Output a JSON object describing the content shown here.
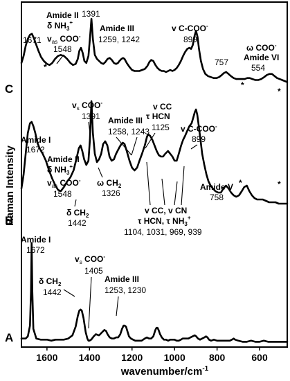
{
  "chart_data": {
    "type": "line",
    "xlabel": "wavenumber/cm",
    "xlabel_sup": "-1",
    "ylabel": "Raman Intensity",
    "x_reversed": true,
    "xlim": [
      1720,
      470
    ],
    "x_ticks": [
      1600,
      1400,
      1200,
      1000,
      800,
      600
    ],
    "x_tick_labels": [
      "1600",
      "1400",
      "1200",
      "1000",
      "800",
      "600"
    ],
    "grid": false,
    "legend": "none",
    "series": [
      {
        "label": "A",
        "x": [
          1720,
          1700,
          1690,
          1680,
          1675,
          1672,
          1669,
          1664,
          1650,
          1630,
          1600,
          1580,
          1560,
          1540,
          1520,
          1500,
          1480,
          1465,
          1455,
          1448,
          1442,
          1436,
          1428,
          1418,
          1410,
          1405,
          1400,
          1392,
          1380,
          1370,
          1355,
          1340,
          1330,
          1322,
          1315,
          1305,
          1295,
          1285,
          1275,
          1265,
          1255,
          1247,
          1240,
          1234,
          1228,
          1222,
          1214,
          1205,
          1195,
          1185,
          1170,
          1155,
          1140,
          1130,
          1120,
          1110,
          1100,
          1090,
          1085,
          1080,
          1075,
          1068,
          1060,
          1050,
          1040,
          1030,
          1020,
          1010,
          1000,
          990,
          980,
          970,
          962,
          955,
          945,
          935,
          925,
          915,
          905,
          898,
          890,
          880,
          870,
          860,
          852,
          845,
          838,
          828,
          815,
          800,
          785,
          770,
          755,
          740,
          730,
          722,
          715,
          700,
          680,
          660,
          640,
          620,
          600,
          580,
          560,
          540,
          520,
          500,
          480,
          470
        ],
        "y": [
          0.06,
          0.06,
          0.08,
          0.18,
          0.5,
          0.95,
          0.5,
          0.15,
          0.06,
          0.05,
          0.05,
          0.04,
          0.05,
          0.05,
          0.05,
          0.06,
          0.09,
          0.17,
          0.27,
          0.32,
          0.33,
          0.32,
          0.25,
          0.12,
          0.06,
          0.04,
          0.04,
          0.05,
          0.08,
          0.1,
          0.09,
          0.12,
          0.14,
          0.13,
          0.1,
          0.07,
          0.06,
          0.06,
          0.07,
          0.07,
          0.1,
          0.15,
          0.18,
          0.18,
          0.17,
          0.13,
          0.08,
          0.06,
          0.05,
          0.04,
          0.04,
          0.04,
          0.06,
          0.07,
          0.06,
          0.06,
          0.08,
          0.14,
          0.16,
          0.16,
          0.14,
          0.1,
          0.07,
          0.05,
          0.05,
          0.04,
          0.05,
          0.05,
          0.05,
          0.04,
          0.04,
          0.05,
          0.06,
          0.06,
          0.06,
          0.06,
          0.07,
          0.08,
          0.09,
          0.08,
          0.06,
          0.05,
          0.06,
          0.07,
          0.08,
          0.07,
          0.05,
          0.04,
          0.05,
          0.04,
          0.04,
          0.04,
          0.04,
          0.04,
          0.05,
          0.06,
          0.05,
          0.04,
          0.03,
          0.03,
          0.04,
          0.03,
          0.03,
          0.04,
          0.03,
          0.03,
          0.03,
          0.03,
          0.03,
          0.03
        ]
      },
      {
        "label": "B",
        "x": [
          1720,
          1710,
          1700,
          1690,
          1680,
          1672,
          1664,
          1655,
          1645,
          1635,
          1620,
          1605,
          1590,
          1575,
          1560,
          1548,
          1535,
          1520,
          1505,
          1490,
          1475,
          1462,
          1450,
          1442,
          1434,
          1425,
          1415,
          1405,
          1398,
          1391,
          1384,
          1375,
          1365,
          1355,
          1345,
          1336,
          1326,
          1316,
          1306,
          1296,
          1285,
          1275,
          1265,
          1258,
          1250,
          1243,
          1235,
          1225,
          1212,
          1200,
          1188,
          1176,
          1165,
          1153,
          1140,
          1130,
          1125,
          1115,
          1104,
          1094,
          1084,
          1074,
          1064,
          1054,
          1044,
          1031,
          1020,
          1010,
          1000,
          990,
          980,
          969,
          960,
          950,
          939,
          930,
          920,
          912,
          905,
          899,
          893,
          886,
          878,
          870,
          860,
          850,
          840,
          830,
          820,
          808,
          795,
          782,
          770,
          758,
          746,
          734,
          722,
          710,
          697,
          684,
          672,
          660,
          648,
          636,
          624,
          612,
          600,
          585,
          570,
          555,
          540,
          525,
          510,
          495,
          480,
          470
        ],
        "y": [
          0.35,
          0.45,
          0.6,
          0.75,
          0.82,
          0.83,
          0.8,
          0.75,
          0.68,
          0.64,
          0.6,
          0.55,
          0.48,
          0.42,
          0.37,
          0.34,
          0.33,
          0.36,
          0.4,
          0.43,
          0.48,
          0.56,
          0.64,
          0.66,
          0.62,
          0.56,
          0.52,
          0.55,
          0.7,
          0.98,
          0.75,
          0.6,
          0.54,
          0.56,
          0.6,
          0.67,
          0.69,
          0.66,
          0.58,
          0.55,
          0.56,
          0.6,
          0.63,
          0.65,
          0.67,
          0.68,
          0.67,
          0.62,
          0.55,
          0.5,
          0.48,
          0.5,
          0.55,
          0.6,
          0.66,
          0.72,
          0.74,
          0.73,
          0.7,
          0.66,
          0.62,
          0.59,
          0.58,
          0.58,
          0.6,
          0.62,
          0.6,
          0.58,
          0.55,
          0.55,
          0.6,
          0.66,
          0.7,
          0.73,
          0.77,
          0.8,
          0.82,
          0.86,
          0.9,
          0.92,
          0.88,
          0.8,
          0.7,
          0.6,
          0.52,
          0.45,
          0.4,
          0.37,
          0.35,
          0.33,
          0.32,
          0.32,
          0.35,
          0.37,
          0.35,
          0.32,
          0.3,
          0.29,
          0.3,
          0.33,
          0.36,
          0.37,
          0.33,
          0.3,
          0.28,
          0.27,
          0.27,
          0.27,
          0.26,
          0.25,
          0.25,
          0.25,
          0.24,
          0.24,
          0.24,
          0.24
        ]
      },
      {
        "label": "C",
        "x": [
          1720,
          1710,
          1700,
          1690,
          1680,
          1671,
          1662,
          1652,
          1640,
          1628,
          1615,
          1600,
          1588,
          1575,
          1562,
          1548,
          1535,
          1520,
          1505,
          1490,
          1478,
          1465,
          1455,
          1448,
          1440,
          1432,
          1424,
          1415,
          1405,
          1398,
          1391,
          1384,
          1375,
          1365,
          1355,
          1345,
          1335,
          1325,
          1315,
          1305,
          1295,
          1285,
          1275,
          1266,
          1259,
          1250,
          1242,
          1235,
          1225,
          1212,
          1200,
          1188,
          1176,
          1165,
          1153,
          1140,
          1128,
          1118,
          1110,
          1100,
          1090,
          1080,
          1070,
          1060,
          1050,
          1040,
          1030,
          1020,
          1010,
          1000,
          990,
          980,
          970,
          960,
          950,
          940,
          930,
          922,
          914,
          906,
          899,
          892,
          885,
          876,
          866,
          855,
          843,
          830,
          816,
          802,
          790,
          778,
          768,
          757,
          746,
          735,
          722,
          709,
          696,
          683,
          670,
          658,
          646,
          634,
          620,
          606,
          592,
          578,
          566,
          554,
          542,
          530,
          518,
          506,
          494,
          482,
          470
        ],
        "y": [
          0.38,
          0.45,
          0.55,
          0.62,
          0.66,
          0.67,
          0.63,
          0.57,
          0.5,
          0.44,
          0.4,
          0.37,
          0.36,
          0.38,
          0.42,
          0.45,
          0.46,
          0.45,
          0.42,
          0.38,
          0.36,
          0.37,
          0.42,
          0.5,
          0.53,
          0.48,
          0.4,
          0.38,
          0.45,
          0.62,
          0.82,
          0.62,
          0.46,
          0.42,
          0.4,
          0.38,
          0.37,
          0.39,
          0.42,
          0.43,
          0.41,
          0.38,
          0.37,
          0.38,
          0.4,
          0.42,
          0.43,
          0.42,
          0.38,
          0.34,
          0.31,
          0.3,
          0.3,
          0.3,
          0.31,
          0.32,
          0.35,
          0.39,
          0.41,
          0.4,
          0.36,
          0.33,
          0.31,
          0.3,
          0.3,
          0.29,
          0.3,
          0.31,
          0.3,
          0.31,
          0.33,
          0.36,
          0.4,
          0.45,
          0.49,
          0.52,
          0.53,
          0.52,
          0.56,
          0.65,
          0.7,
          0.64,
          0.52,
          0.4,
          0.32,
          0.27,
          0.25,
          0.24,
          0.23,
          0.23,
          0.24,
          0.26,
          0.28,
          0.29,
          0.27,
          0.25,
          0.23,
          0.22,
          0.22,
          0.22,
          0.22,
          0.23,
          0.23,
          0.22,
          0.21,
          0.21,
          0.22,
          0.24,
          0.26,
          0.27,
          0.27,
          0.25,
          0.23,
          0.22,
          0.21,
          0.2,
          0.19
        ]
      }
    ],
    "panel_labels": [
      "C",
      "B",
      "A"
    ],
    "annotations": {
      "C": [
        {
          "lines": [
            "1671"
          ],
          "bold": [
            false
          ]
        },
        {
          "lines": [
            "Amide II",
            "δ NH₃⁺"
          ],
          "bold": [
            true,
            true
          ]
        },
        {
          "lines": [
            "1391"
          ],
          "bold": [
            false
          ]
        },
        {
          "lines": [
            "v",
            "as",
            " COO⁻"
          ],
          "bold": [
            true,
            false,
            true
          ]
        },
        {
          "lines": [
            "1548"
          ],
          "bold": [
            false
          ]
        },
        {
          "lines": [
            "*"
          ],
          "bold": [
            false
          ]
        },
        {
          "lines": [
            "Amide III"
          ],
          "bold": [
            true
          ]
        },
        {
          "lines": [
            "1259, 1242"
          ],
          "bold": [
            false
          ]
        },
        {
          "lines": [
            "v C-COO⁻"
          ],
          "bold": [
            true
          ]
        },
        {
          "lines": [
            "899"
          ],
          "bold": [
            false
          ]
        },
        {
          "lines": [
            "757"
          ],
          "bold": [
            false
          ]
        },
        {
          "lines": [
            "*"
          ],
          "bold": [
            false
          ]
        },
        {
          "lines": [
            "ω COO⁻"
          ],
          "bold": [
            true
          ]
        },
        {
          "lines": [
            "Amide VI"
          ],
          "bold": [
            true
          ]
        },
        {
          "lines": [
            "554"
          ],
          "bold": [
            false
          ]
        },
        {
          "lines": [
            "*"
          ],
          "bold": [
            false
          ]
        }
      ]
    },
    "labels": {
      "c_1671": "1671",
      "c_amide2": "Amide II",
      "c_dnh3": "δ NH",
      "c_dnh3_sub": "3",
      "c_dnh3_sup": "+",
      "c_1391": "1391",
      "c_vas_v": "v",
      "c_vas_sub": "as",
      "c_vas_rest": " COO",
      "c_vas_sup": "-",
      "c_1548": "1548",
      "c_star1": "*",
      "c_amide3": "Amide III",
      "c_1259": "1259, 1242",
      "c_vccoo": "v C-COO",
      "c_vccoo_sup": "-",
      "c_899": "899",
      "c_757": "757",
      "c_star2": "*",
      "c_wcoo": "ω COO",
      "c_wcoo_sup": "-",
      "c_amide6": "Amide VI",
      "c_554": "554",
      "c_star3": "*",
      "b_amide1": "Amide I",
      "b_1672": "1672",
      "b_vs_v": "v",
      "b_vs_sub": "s",
      "b_vs_rest": " COO",
      "b_vs_sup": "-",
      "b_1391": "1391",
      "b_amide2": "Amide II",
      "b_dnh3": "δ NH",
      "b_dnh3_sub": "3",
      "b_dnh3_sup": "+",
      "b_vas_v": "v",
      "b_vas_sub": "as",
      "b_vas_rest": " COO",
      "b_vas_sup": "-",
      "b_1548": "1548",
      "b_amide3": "Amide III",
      "b_1258": "1258, 1243",
      "b_vcc": "v CC",
      "b_thcn": "τ HCN",
      "b_1125": "1125",
      "b_vccoo": "v C-COO",
      "b_vccoo_sup": "-",
      "b_899": "899",
      "b_wch2": "ω CH",
      "b_wch2_sub": "2",
      "b_1326": "1326",
      "b_dch2": "δ CH",
      "b_dch2_sub": "2",
      "b_1442": "1442",
      "b_amide5": "Amide V",
      "b_758": "758",
      "b_star1": "*",
      "b_star2": "*",
      "b_multi1": "v CC, v CN",
      "b_multi2a": "τ HCN, τ NH",
      "b_multi2_sub": "3",
      "b_multi2_sup": "+",
      "b_multi3": "1104, 1031, 969, 939",
      "a_amide1": "Amide I",
      "a_1672": "1672",
      "a_vs_v": "v",
      "a_vs_sub": "s",
      "a_vs_rest": " COO",
      "a_vs_sup": "-",
      "a_1405": "1405",
      "a_dch2": "δ CH",
      "a_dch2_sub": "2",
      "a_1442": "1442",
      "a_amide3": "Amide III",
      "a_1253": "1253, 1230"
    }
  }
}
